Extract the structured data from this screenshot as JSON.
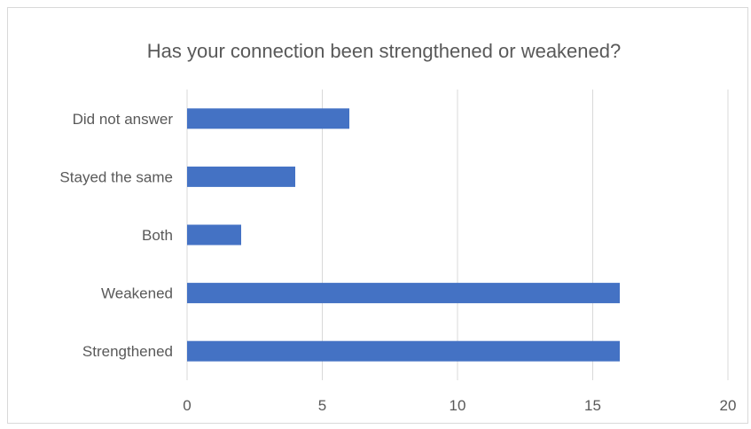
{
  "chart_data": {
    "type": "bar",
    "orientation": "horizontal",
    "title": "Has your connection been strengthened or weakened?",
    "categories": [
      "Did not answer",
      "Stayed the same",
      "Both",
      "Weakened",
      "Strengthened"
    ],
    "values": [
      6,
      4,
      2,
      16,
      16
    ],
    "xlim": [
      0,
      20
    ],
    "x_ticks": [
      0,
      5,
      10,
      15,
      20
    ],
    "grid": true,
    "legend": "none",
    "bar_color": "#4472c4",
    "grid_color": "#d9d9d9",
    "text_color": "#595959"
  }
}
